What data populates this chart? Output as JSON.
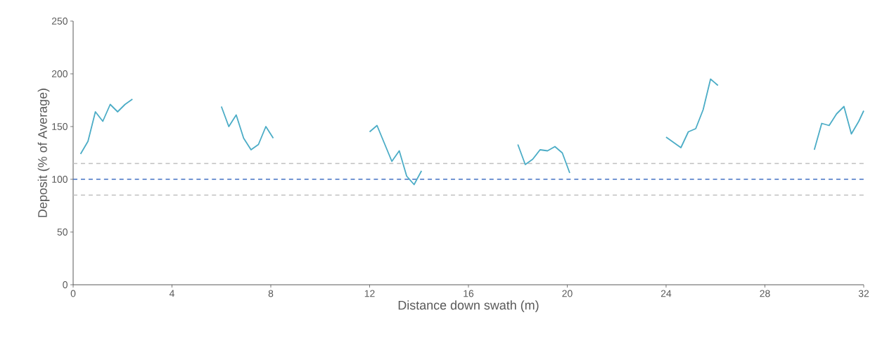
{
  "chart_data": {
    "type": "line",
    "xlabel": "Distance down swath (m)",
    "ylabel": "Deposit (% of Average)",
    "xlim": [
      0,
      32
    ],
    "xticks": [
      0,
      4,
      8,
      12,
      16,
      20,
      24,
      28,
      32
    ],
    "ylim": [
      0,
      250
    ],
    "yticks": [
      0,
      50,
      100,
      150,
      200,
      250
    ],
    "grid": false,
    "ref_lines": [
      {
        "axis": "y",
        "value": 115,
        "color": "#bfbfbf",
        "line_style": "dashed"
      },
      {
        "axis": "y",
        "value": 100,
        "color": "#4472c4",
        "line_style": "dashed"
      },
      {
        "axis": "y",
        "value": 85,
        "color": "#bfbfbf",
        "line_style": "dashed"
      }
    ],
    "series": [
      {
        "color": "#4bacc6",
        "x": [
          0.3,
          0.6,
          0.9,
          1.2,
          1.5,
          1.8,
          2.1,
          2.4,
          4.2,
          6.0,
          6.3,
          6.6,
          6.9,
          7.2,
          7.5,
          7.8,
          8.1,
          10.0,
          12.0,
          12.3,
          12.6,
          12.9,
          13.2,
          13.5,
          13.8,
          14.1,
          16.0,
          18.0,
          18.3,
          18.6,
          18.9,
          19.2,
          19.5,
          19.8,
          20.1,
          22.0,
          24.0,
          24.3,
          24.6,
          24.9,
          25.2,
          25.5,
          25.8,
          26.1,
          28.0,
          30.0,
          30.3,
          30.6,
          30.9,
          31.2,
          31.5,
          31.8,
          32.0
        ],
        "values": [
          124,
          136,
          164,
          155,
          171,
          164,
          171,
          176,
          null,
          169,
          150,
          161,
          139,
          128,
          133,
          150,
          139,
          null,
          145,
          151,
          134,
          117,
          127,
          103,
          95,
          108,
          null,
          133,
          114,
          119,
          128,
          127,
          131,
          125,
          106,
          null,
          140,
          135,
          130,
          145,
          148,
          166,
          195,
          189,
          null,
          128,
          153,
          151,
          162,
          169,
          143,
          155,
          165
        ]
      }
    ]
  }
}
